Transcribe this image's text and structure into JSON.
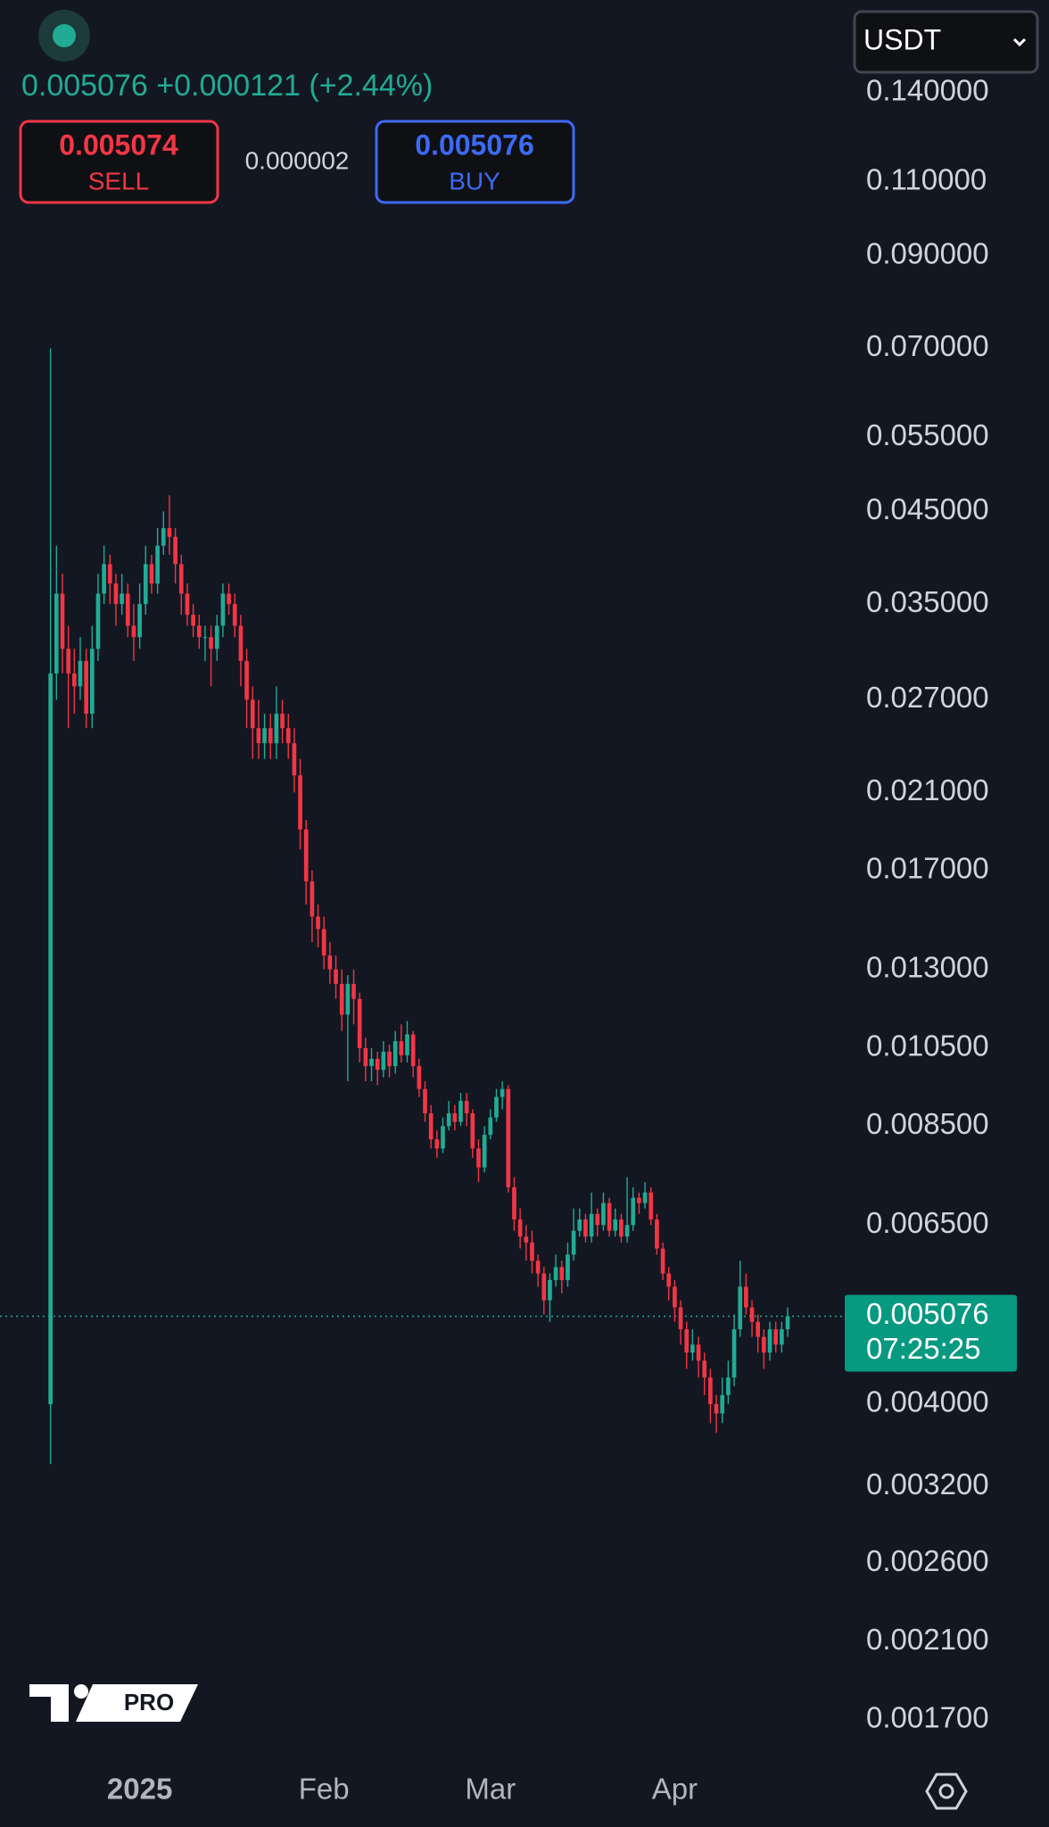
{
  "header": {
    "last": "0.005076",
    "change": "+0.000121",
    "change_pct": "(+2.44%)",
    "sell_price": "0.005074",
    "sell_label": "SELL",
    "spread": "0.000002",
    "buy_price": "0.005076",
    "buy_label": "BUY",
    "currency": "USDT",
    "logo": "PRO"
  },
  "chart_data": {
    "type": "candlestick",
    "log_y": true,
    "up_color": "#22ab94",
    "down_color": "#f23645",
    "x": [
      -15,
      -14,
      -13,
      -12,
      -11,
      -10,
      -9,
      -8,
      -7,
      -6,
      -5,
      -4,
      -3,
      -2,
      -1,
      0,
      1,
      2,
      3,
      4,
      5,
      6,
      7,
      8,
      9,
      10,
      11,
      12,
      13,
      14,
      15,
      16,
      17,
      18,
      19,
      20,
      21,
      22,
      23,
      24,
      25,
      26,
      27,
      28,
      29,
      30,
      31,
      32,
      33,
      34,
      35,
      36,
      37,
      38,
      39,
      40,
      41,
      42,
      43,
      44,
      45,
      46,
      47,
      48,
      49,
      50,
      51,
      52,
      53,
      54,
      55,
      56,
      57,
      58,
      59,
      60,
      61,
      62,
      63,
      64,
      65,
      66,
      67,
      68,
      69,
      70,
      71,
      72,
      73,
      74,
      75,
      76,
      77,
      78,
      79,
      80,
      81,
      82,
      83,
      84,
      85,
      86,
      87,
      88,
      89,
      90,
      91,
      92,
      93,
      94,
      95,
      96,
      97,
      98,
      99,
      100,
      101,
      102,
      103,
      104,
      105,
      106,
      107,
      108,
      109
    ],
    "open": [
      0.004,
      0.029,
      0.036,
      0.031,
      0.029,
      0.028,
      0.03,
      0.026,
      0.031,
      0.036,
      0.039,
      0.037,
      0.035,
      0.036,
      0.033,
      0.032,
      0.035,
      0.039,
      0.037,
      0.041,
      0.043,
      0.042,
      0.039,
      0.036,
      0.034,
      0.033,
      0.032,
      0.032,
      0.031,
      0.033,
      0.036,
      0.035,
      0.033,
      0.03,
      0.027,
      0.025,
      0.024,
      0.025,
      0.024,
      0.026,
      0.025,
      0.024,
      0.022,
      0.019,
      0.0165,
      0.015,
      0.0145,
      0.0135,
      0.013,
      0.0125,
      0.0115,
      0.0125,
      0.012,
      0.0105,
      0.01,
      0.0102,
      0.0099,
      0.0104,
      0.01,
      0.0107,
      0.0103,
      0.0109,
      0.01,
      0.0094,
      0.0088,
      0.0082,
      0.008,
      0.0085,
      0.0088,
      0.0086,
      0.0091,
      0.0088,
      0.008,
      0.0076,
      0.0083,
      0.0087,
      0.0092,
      0.0094,
      0.0072,
      0.0066,
      0.0063,
      0.0062,
      0.0059,
      0.0057,
      0.0053,
      0.0056,
      0.0058,
      0.0056,
      0.006,
      0.0064,
      0.0066,
      0.0063,
      0.0067,
      0.0065,
      0.0069,
      0.0064,
      0.0066,
      0.0063,
      0.0065,
      0.007,
      0.0069,
      0.0071,
      0.0066,
      0.0061,
      0.0057,
      0.0055,
      0.0052,
      0.0049,
      0.0046,
      0.0047,
      0.0045,
      0.0043,
      0.004,
      0.0039,
      0.0041,
      0.0043,
      0.0049,
      0.0055,
      0.0052,
      0.005,
      0.0048,
      0.0046,
      0.0049,
      0.0047,
      0.0049
    ],
    "high": [
      0.07,
      0.041,
      0.038,
      0.033,
      0.031,
      0.032,
      0.031,
      0.033,
      0.038,
      0.041,
      0.04,
      0.038,
      0.038,
      0.037,
      0.035,
      0.037,
      0.041,
      0.04,
      0.043,
      0.045,
      0.047,
      0.043,
      0.04,
      0.037,
      0.035,
      0.034,
      0.033,
      0.033,
      0.034,
      0.037,
      0.037,
      0.036,
      0.034,
      0.031,
      0.028,
      0.027,
      0.026,
      0.026,
      0.028,
      0.027,
      0.026,
      0.025,
      0.023,
      0.0195,
      0.017,
      0.0155,
      0.015,
      0.014,
      0.0135,
      0.013,
      0.0128,
      0.013,
      0.0122,
      0.0108,
      0.0105,
      0.0104,
      0.0107,
      0.0106,
      0.011,
      0.0112,
      0.0113,
      0.011,
      0.0102,
      0.0096,
      0.009,
      0.0084,
      0.0087,
      0.0091,
      0.009,
      0.0093,
      0.0093,
      0.0089,
      0.0082,
      0.0085,
      0.0089,
      0.0094,
      0.0096,
      0.0095,
      0.0074,
      0.0068,
      0.0065,
      0.0064,
      0.006,
      0.0058,
      0.0057,
      0.006,
      0.0059,
      0.0062,
      0.0068,
      0.0068,
      0.0067,
      0.0071,
      0.0068,
      0.0071,
      0.007,
      0.0068,
      0.0067,
      0.0074,
      0.0072,
      0.0071,
      0.0073,
      0.0072,
      0.0067,
      0.0062,
      0.0058,
      0.0056,
      0.0053,
      0.005,
      0.0049,
      0.0048,
      0.0046,
      0.0044,
      0.0041,
      0.0043,
      0.0045,
      0.0051,
      0.0059,
      0.0057,
      0.0053,
      0.0051,
      0.0049,
      0.005,
      0.005,
      0.005,
      0.0052
    ],
    "low": [
      0.0034,
      0.027,
      0.029,
      0.025,
      0.026,
      0.027,
      0.025,
      0.025,
      0.03,
      0.035,
      0.035,
      0.033,
      0.034,
      0.032,
      0.03,
      0.031,
      0.034,
      0.036,
      0.036,
      0.04,
      0.04,
      0.037,
      0.034,
      0.033,
      0.032,
      0.031,
      0.03,
      0.028,
      0.03,
      0.032,
      0.034,
      0.032,
      0.028,
      0.025,
      0.023,
      0.023,
      0.023,
      0.023,
      0.023,
      0.024,
      0.023,
      0.021,
      0.018,
      0.0155,
      0.014,
      0.0138,
      0.013,
      0.0125,
      0.012,
      0.011,
      0.0096,
      0.0112,
      0.0101,
      0.0096,
      0.0096,
      0.0095,
      0.0097,
      0.0097,
      0.0098,
      0.0101,
      0.0101,
      0.0097,
      0.0092,
      0.0086,
      0.008,
      0.0078,
      0.0079,
      0.0084,
      0.0084,
      0.0085,
      0.0085,
      0.0078,
      0.0073,
      0.0075,
      0.0082,
      0.0086,
      0.0089,
      0.0071,
      0.0064,
      0.0061,
      0.0059,
      0.0057,
      0.0055,
      0.0051,
      0.005,
      0.0055,
      0.0054,
      0.0055,
      0.0059,
      0.0063,
      0.0062,
      0.0062,
      0.0063,
      0.0064,
      0.0063,
      0.0063,
      0.0062,
      0.0062,
      0.0064,
      0.0067,
      0.0068,
      0.0065,
      0.006,
      0.0056,
      0.0053,
      0.005,
      0.0047,
      0.0044,
      0.0045,
      0.0043,
      0.0041,
      0.0038,
      0.0037,
      0.0038,
      0.004,
      0.0042,
      0.0048,
      0.0051,
      0.0048,
      0.0046,
      0.0044,
      0.0045,
      0.0046,
      0.0046,
      0.0048
    ],
    "close": [
      0.029,
      0.036,
      0.031,
      0.029,
      0.028,
      0.03,
      0.026,
      0.031,
      0.036,
      0.039,
      0.037,
      0.035,
      0.036,
      0.033,
      0.032,
      0.035,
      0.039,
      0.037,
      0.041,
      0.043,
      0.042,
      0.039,
      0.036,
      0.034,
      0.033,
      0.032,
      0.032,
      0.031,
      0.033,
      0.036,
      0.035,
      0.033,
      0.03,
      0.027,
      0.025,
      0.024,
      0.025,
      0.024,
      0.026,
      0.025,
      0.024,
      0.022,
      0.019,
      0.0165,
      0.015,
      0.0145,
      0.0135,
      0.013,
      0.0125,
      0.0115,
      0.0125,
      0.012,
      0.0105,
      0.01,
      0.0102,
      0.0099,
      0.0104,
      0.01,
      0.0107,
      0.0103,
      0.0109,
      0.01,
      0.0094,
      0.0088,
      0.0082,
      0.008,
      0.0085,
      0.0088,
      0.0086,
      0.0091,
      0.0088,
      0.008,
      0.0076,
      0.0083,
      0.0087,
      0.0092,
      0.0094,
      0.0072,
      0.0066,
      0.0063,
      0.0062,
      0.0059,
      0.0057,
      0.0053,
      0.0056,
      0.0058,
      0.0056,
      0.006,
      0.0064,
      0.0066,
      0.0063,
      0.0067,
      0.0065,
      0.0069,
      0.0064,
      0.0066,
      0.0063,
      0.0065,
      0.007,
      0.0069,
      0.0071,
      0.0066,
      0.0061,
      0.0057,
      0.0055,
      0.0052,
      0.0049,
      0.0046,
      0.0047,
      0.0045,
      0.0043,
      0.004,
      0.0039,
      0.0041,
      0.0043,
      0.0049,
      0.0055,
      0.0052,
      0.005,
      0.0048,
      0.0046,
      0.0049,
      0.0047,
      0.0049,
      0.005076
    ],
    "xlim": [
      -23.5,
      118.6
    ],
    "xticks": [
      {
        "value": 0,
        "label": "2025"
      },
      {
        "value": 31,
        "label": "Feb"
      },
      {
        "value": 59,
        "label": "Mar"
      },
      {
        "value": 90,
        "label": "Apr"
      }
    ],
    "ylim": [
      0.00155,
      0.18
    ],
    "yticks": [
      {
        "value": 0.14,
        "label": "0.140000"
      },
      {
        "value": 0.11,
        "label": "0.110000"
      },
      {
        "value": 0.09,
        "label": "0.090000"
      },
      {
        "value": 0.07,
        "label": "0.070000"
      },
      {
        "value": 0.055,
        "label": "0.055000"
      },
      {
        "value": 0.045,
        "label": "0.045000"
      },
      {
        "value": 0.035,
        "label": "0.035000"
      },
      {
        "value": 0.027,
        "label": "0.027000"
      },
      {
        "value": 0.021,
        "label": "0.021000"
      },
      {
        "value": 0.017,
        "label": "0.017000"
      },
      {
        "value": 0.013,
        "label": "0.013000"
      },
      {
        "value": 0.0105,
        "label": "0.010500"
      },
      {
        "value": 0.0085,
        "label": "0.008500"
      },
      {
        "value": 0.0065,
        "label": "0.006500"
      },
      {
        "value": 0.004,
        "label": "0.004000"
      },
      {
        "value": 0.0032,
        "label": "0.003200"
      },
      {
        "value": 0.0026,
        "label": "0.002600"
      },
      {
        "value": 0.0021,
        "label": "0.002100"
      },
      {
        "value": 0.0017,
        "label": "0.001700"
      }
    ],
    "last_price": {
      "value": 0.005076,
      "label": "0.005076"
    },
    "countdown": "07:25:25"
  }
}
